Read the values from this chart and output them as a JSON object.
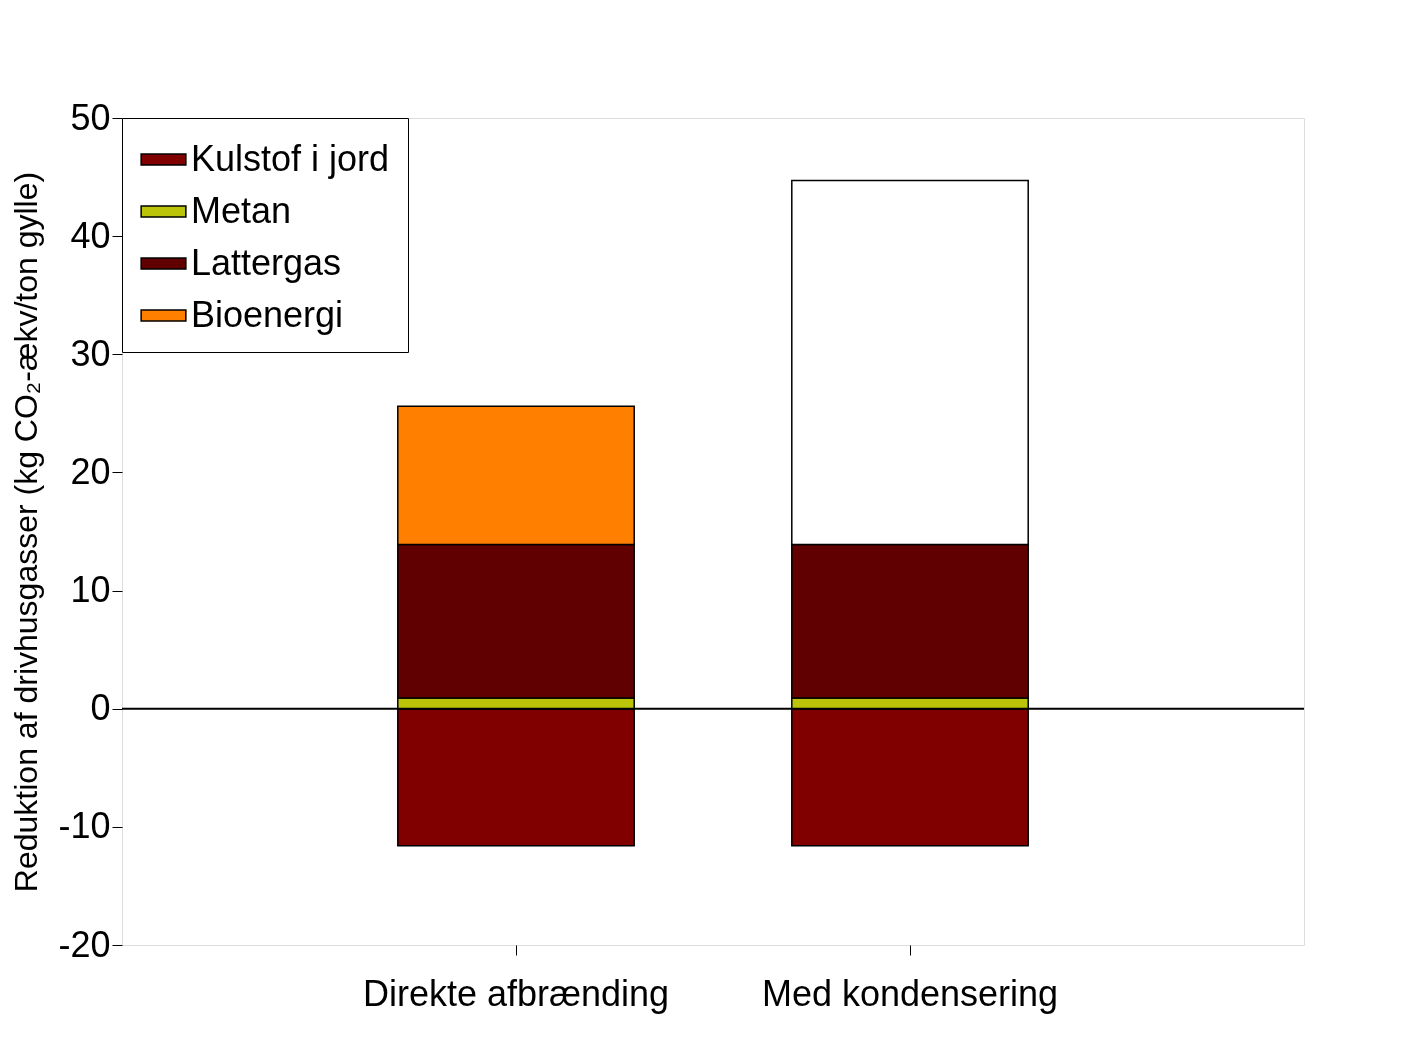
{
  "chart_data": {
    "type": "bar",
    "stacked": true,
    "ylabel": "Reduktion af drivhusgasser (kg CO₂-ækv/ton gylle)",
    "categories": [
      "Direkte afbrænding",
      "Med kondensering"
    ],
    "series": [
      {
        "name": "Kulstof i jord",
        "color": "#800000",
        "values": [
          -11.6,
          -11.6
        ]
      },
      {
        "name": "Metan",
        "color": "#bcc40a",
        "values": [
          0.9,
          0.9
        ]
      },
      {
        "name": "Lattergas",
        "color": "#600000",
        "values": [
          13.0,
          13.0
        ]
      },
      {
        "name": "Bioenergi",
        "color": "#ff8000",
        "colors": [
          "#ff8000",
          "#ffffff"
        ],
        "values": [
          11.7,
          30.8
        ]
      }
    ],
    "ylim": [
      -20,
      50
    ],
    "yticks": [
      -20,
      -10,
      0,
      10,
      20,
      30,
      40,
      50
    ],
    "ref_lines": [
      {
        "axis": "y",
        "value": 0
      }
    ],
    "grid": false,
    "legend": "top left"
  }
}
